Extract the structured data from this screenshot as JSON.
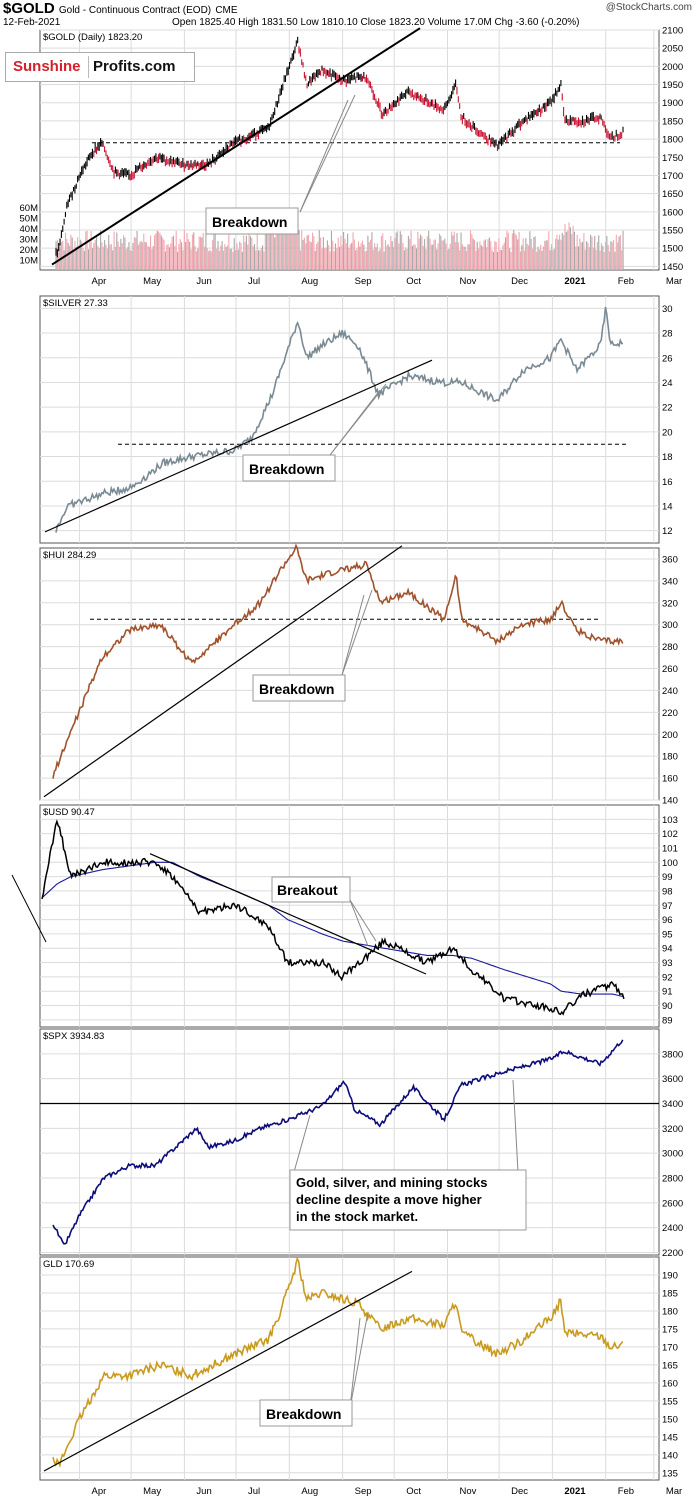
{
  "header": {
    "symbol": "$GOLD",
    "description": "Gold - Continuous Contract (EOD)",
    "exchange": "CME",
    "date": "12-Feb-2021",
    "ohlc": "Open 1825.40  High 1831.50  Low 1810.10  Close 1823.20  Volume 17.0M  Chg -3.60 (-0.20%)",
    "source": "@StockCharts.com"
  },
  "logo": {
    "part1": "Sunshine",
    "part2": "Profits.com"
  },
  "colors": {
    "gold_up": "#000000",
    "gold_down": "#c8102e",
    "silver": "#7a8a94",
    "hui": "#a0522d",
    "usd": "#000000",
    "usd_ma": "#1a1aa0",
    "spx": "#0b0b7a",
    "gld": "#c99a1e",
    "volume_down": "#f3a7b0",
    "volume_up": "#a8a8a8"
  },
  "chart_data": [
    {
      "type": "line",
      "legend": "$GOLD (Daily) 1823.20",
      "x": [
        "2020-03-18",
        "2020-03-20",
        "2020-03-25",
        "2020-04-01",
        "2020-04-08",
        "2020-04-14",
        "2020-04-21",
        "2020-04-30",
        "2020-05-15",
        "2020-05-31",
        "2020-06-15",
        "2020-06-30",
        "2020-07-10",
        "2020-07-20",
        "2020-07-27",
        "2020-08-06",
        "2020-08-11",
        "2020-08-20",
        "2020-09-01",
        "2020-09-10",
        "2020-09-15",
        "2020-09-24",
        "2020-10-09",
        "2020-10-30",
        "2020-11-06",
        "2020-11-09",
        "2020-11-30",
        "2020-12-15",
        "2020-12-31",
        "2021-01-06",
        "2021-01-08",
        "2021-01-20",
        "2021-01-29",
        "2021-02-04",
        "2021-02-12"
      ],
      "values": [
        1480,
        1500,
        1620,
        1700,
        1760,
        1790,
        1710,
        1700,
        1750,
        1730,
        1730,
        1790,
        1810,
        1830,
        1930,
        2070,
        1950,
        1990,
        1960,
        1970,
        1970,
        1870,
        1930,
        1880,
        1950,
        1860,
        1780,
        1850,
        1900,
        1950,
        1850,
        1850,
        1860,
        1800,
        1823
      ],
      "ylim": [
        1440,
        2100
      ],
      "yticks": [
        "2100",
        "2050",
        "2000",
        "1950",
        "1900",
        "1850",
        "1800",
        "1750",
        "1700",
        "1650",
        "1600",
        "1550",
        "1500",
        "1450"
      ],
      "volume_ticks": [
        "60M",
        "50M",
        "40M",
        "30M",
        "20M",
        "10M"
      ],
      "support_level": 1790,
      "annotation": "Breakdown"
    },
    {
      "type": "line",
      "legend": "$SILVER 27.33",
      "x": [
        "2020-03-18",
        "2020-03-25",
        "2020-04-15",
        "2020-05-01",
        "2020-05-20",
        "2020-06-05",
        "2020-06-30",
        "2020-07-10",
        "2020-07-22",
        "2020-08-06",
        "2020-08-11",
        "2020-08-20",
        "2020-09-01",
        "2020-09-10",
        "2020-09-22",
        "2020-10-09",
        "2020-10-30",
        "2020-11-09",
        "2020-11-30",
        "2020-12-15",
        "2020-12-31",
        "2021-01-06",
        "2021-01-15",
        "2021-01-29",
        "2021-02-01",
        "2021-02-04",
        "2021-02-12"
      ],
      "values": [
        12,
        14,
        15,
        15.5,
        17.5,
        18,
        18.5,
        19.5,
        23,
        29,
        26,
        27,
        28,
        27,
        23,
        24.5,
        24,
        24,
        22.5,
        25,
        26,
        27.5,
        25,
        27,
        30,
        27,
        27.33
      ],
      "ylim": [
        11,
        31
      ],
      "yticks": [
        "30",
        "28",
        "26",
        "24",
        "22",
        "20",
        "18",
        "16",
        "14",
        "12"
      ],
      "support_level": 19,
      "annotation": "Breakdown"
    },
    {
      "type": "line",
      "legend": "$HUI 284.29",
      "x": [
        "2020-03-16",
        "2020-03-25",
        "2020-04-14",
        "2020-04-30",
        "2020-05-18",
        "2020-06-05",
        "2020-06-30",
        "2020-07-15",
        "2020-07-27",
        "2020-08-05",
        "2020-08-11",
        "2020-08-31",
        "2020-09-15",
        "2020-09-23",
        "2020-10-09",
        "2020-10-30",
        "2020-11-06",
        "2020-11-09",
        "2020-11-30",
        "2020-12-15",
        "2020-12-31",
        "2021-01-06",
        "2021-01-15",
        "2021-01-29",
        "2021-02-12"
      ],
      "values": [
        160,
        195,
        270,
        295,
        300,
        265,
        300,
        320,
        350,
        370,
        340,
        350,
        355,
        320,
        330,
        305,
        345,
        305,
        285,
        300,
        305,
        320,
        295,
        285,
        284.29
      ],
      "ylim": [
        140,
        370
      ],
      "yticks": [
        "360",
        "340",
        "320",
        "300",
        "280",
        "260",
        "240",
        "220",
        "200",
        "180",
        "160",
        "140"
      ],
      "support_level": 305,
      "annotation": "Breakdown"
    },
    {
      "type": "line",
      "legend": "$USD 90.47",
      "x": [
        "2020-03-10",
        "2020-03-19",
        "2020-03-27",
        "2020-04-15",
        "2020-05-15",
        "2020-05-25",
        "2020-06-10",
        "2020-07-01",
        "2020-07-20",
        "2020-07-31",
        "2020-08-20",
        "2020-09-01",
        "2020-09-25",
        "2020-10-20",
        "2020-11-04",
        "2020-11-15",
        "2020-12-04",
        "2020-12-31",
        "2021-01-06",
        "2021-01-18",
        "2021-02-05",
        "2021-02-12"
      ],
      "values": [
        97.5,
        103,
        99,
        100,
        100,
        99,
        96.5,
        97,
        95.5,
        93,
        93,
        92,
        94.5,
        93,
        94,
        92.5,
        90.5,
        89.8,
        89.5,
        90.7,
        91.5,
        90.47
      ],
      "series": [
        {
          "name": "moving average",
          "values": [
            97.5,
            98.5,
            99,
            99.5,
            100,
            100,
            99,
            98,
            97,
            96,
            95,
            94.5,
            94,
            93.5,
            93.5,
            93.3,
            92.5,
            91.5,
            91,
            90.8,
            90.8,
            90.6
          ]
        }
      ],
      "ylim": [
        88.5,
        104
      ],
      "yticks": [
        "103",
        "102",
        "101",
        "100",
        "99",
        "98",
        "97",
        "96",
        "95",
        "94",
        "93",
        "92",
        "91",
        "90",
        "89"
      ],
      "annotation": "Breakout"
    },
    {
      "type": "line",
      "legend": "$SPX 3934.83",
      "x": [
        "2020-03-16",
        "2020-03-23",
        "2020-04-01",
        "2020-04-15",
        "2020-04-30",
        "2020-05-15",
        "2020-06-08",
        "2020-06-15",
        "2020-06-30",
        "2020-07-15",
        "2020-07-31",
        "2020-08-20",
        "2020-09-02",
        "2020-09-08",
        "2020-09-23",
        "2020-10-12",
        "2020-10-30",
        "2020-11-09",
        "2020-11-30",
        "2020-12-31",
        "2021-01-08",
        "2021-01-29",
        "2021-02-12"
      ],
      "values": [
        2450,
        2250,
        2500,
        2800,
        2900,
        2900,
        3200,
        3050,
        3100,
        3200,
        3270,
        3380,
        3580,
        3350,
        3230,
        3530,
        3270,
        3550,
        3640,
        3760,
        3820,
        3720,
        3934.83
      ],
      "ylim": [
        2180,
        4000
      ],
      "yticks": [
        "3800",
        "3600",
        "3400",
        "3200",
        "3000",
        "2800",
        "2600",
        "2400",
        "2200"
      ],
      "reference_level": 3400,
      "annotation": "Gold, silver, and mining stocks decline despite a move higher in the stock market."
    },
    {
      "type": "line",
      "legend": "GLD 170.69",
      "x": [
        "2020-03-16",
        "2020-03-20",
        "2020-04-01",
        "2020-04-15",
        "2020-04-30",
        "2020-05-18",
        "2020-06-05",
        "2020-06-30",
        "2020-07-20",
        "2020-07-27",
        "2020-08-06",
        "2020-08-11",
        "2020-08-20",
        "2020-09-10",
        "2020-09-23",
        "2020-10-09",
        "2020-10-30",
        "2020-11-06",
        "2020-11-09",
        "2020-11-30",
        "2020-12-15",
        "2020-12-31",
        "2021-01-06",
        "2021-01-08",
        "2021-01-29",
        "2021-02-04",
        "2021-02-12"
      ],
      "values": [
        140,
        137,
        150,
        162,
        162,
        165,
        162,
        168,
        172,
        180,
        194,
        183,
        185,
        182,
        175,
        178,
        176,
        183,
        174,
        168,
        172,
        178,
        183,
        174,
        173,
        170,
        170.69
      ],
      "ylim": [
        133,
        195
      ],
      "yticks": [
        "190",
        "185",
        "180",
        "175",
        "170",
        "165",
        "160",
        "155",
        "150",
        "145",
        "140",
        "135"
      ],
      "annotation": "Breakdown"
    }
  ],
  "x_axis_labels": [
    {
      "label": "Apr",
      "date": "2020-04-01"
    },
    {
      "label": "May",
      "date": "2020-05-01"
    },
    {
      "label": "Jun",
      "date": "2020-06-01"
    },
    {
      "label": "Jul",
      "date": "2020-07-01"
    },
    {
      "label": "Aug",
      "date": "2020-08-01"
    },
    {
      "label": "Sep",
      "date": "2020-09-01"
    },
    {
      "label": "Oct",
      "date": "2020-10-01"
    },
    {
      "label": "Nov",
      "date": "2020-11-01"
    },
    {
      "label": "Dec",
      "date": "2020-12-01"
    },
    {
      "label": "2021",
      "date": "2021-01-01"
    },
    {
      "label": "Feb",
      "date": "2021-02-01"
    },
    {
      "label": "Mar",
      "date": "2021-03-01"
    }
  ]
}
